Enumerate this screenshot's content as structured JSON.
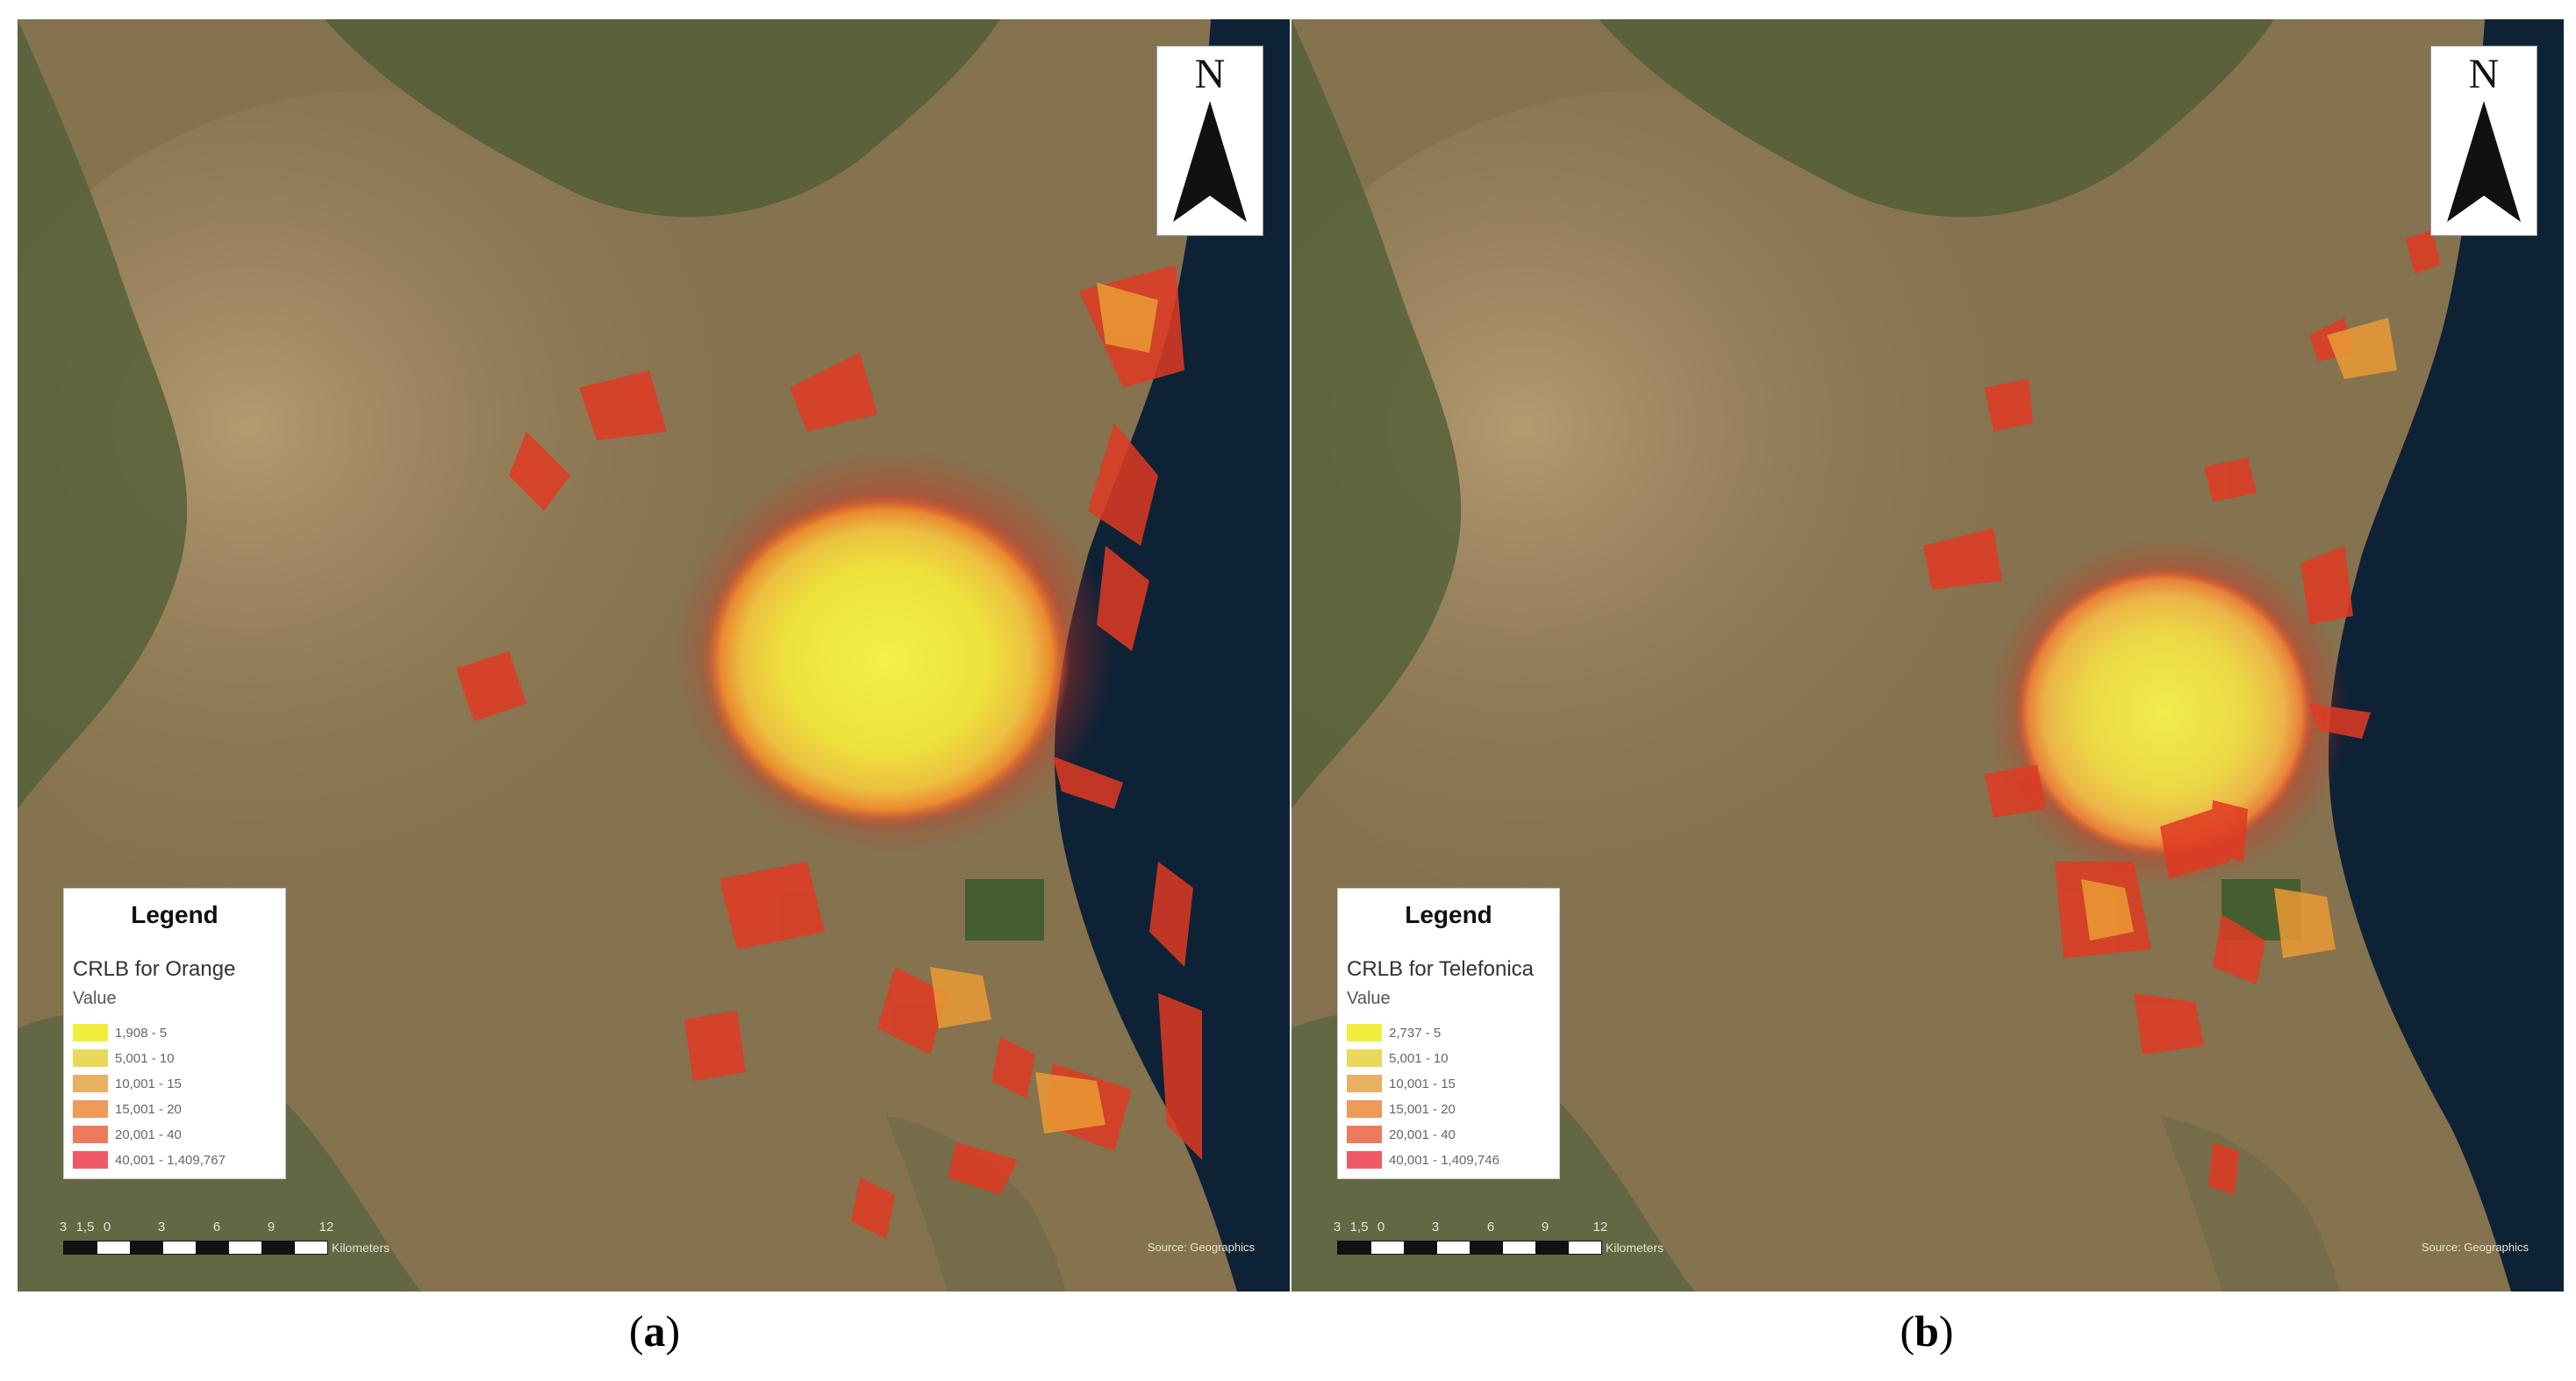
{
  "north_letter": "N",
  "panels": [
    {
      "id": "a",
      "caption": {
        "open": "(",
        "letter": "a",
        "close": ")"
      },
      "legend": {
        "title": "Legend",
        "layer": "CRLB for Orange",
        "field": "Value",
        "items": [
          {
            "label": "1,908 - 5",
            "color": "#f2ee3e"
          },
          {
            "label": "5,001 - 10",
            "color": "#e9d85a"
          },
          {
            "label": "10,001 - 15",
            "color": "#e8b060"
          },
          {
            "label": "15,001 - 20",
            "color": "#ee9a58"
          },
          {
            "label": "20,001 - 40",
            "color": "#ee7a5c"
          },
          {
            "label": "40,001 - 1,409,767",
            "color": "#ef5a66"
          }
        ]
      },
      "scale": {
        "ticks": [
          "3",
          "1,5",
          "0",
          "3",
          "6",
          "9",
          "12"
        ],
        "unit": "Kilometers"
      },
      "attribution": "Source: Geographics"
    },
    {
      "id": "b",
      "caption": {
        "open": "(",
        "letter": "b",
        "close": ")"
      },
      "legend": {
        "title": "Legend",
        "layer": "CRLB for Telefonica",
        "field": "Value",
        "items": [
          {
            "label": "2,737 - 5",
            "color": "#f2ee3e"
          },
          {
            "label": "5,001 - 10",
            "color": "#e9d85a"
          },
          {
            "label": "10,001 - 15",
            "color": "#e8b060"
          },
          {
            "label": "15,001 - 20",
            "color": "#ee9a58"
          },
          {
            "label": "20,001 - 40",
            "color": "#ee7a5c"
          },
          {
            "label": "40,001 - 1,409,746",
            "color": "#ef5a66"
          }
        ]
      },
      "scale": {
        "ticks": [
          "3",
          "1,5",
          "0",
          "3",
          "6",
          "9",
          "12"
        ],
        "unit": "Kilometers"
      },
      "attribution": "Source: Geographics"
    }
  ]
}
